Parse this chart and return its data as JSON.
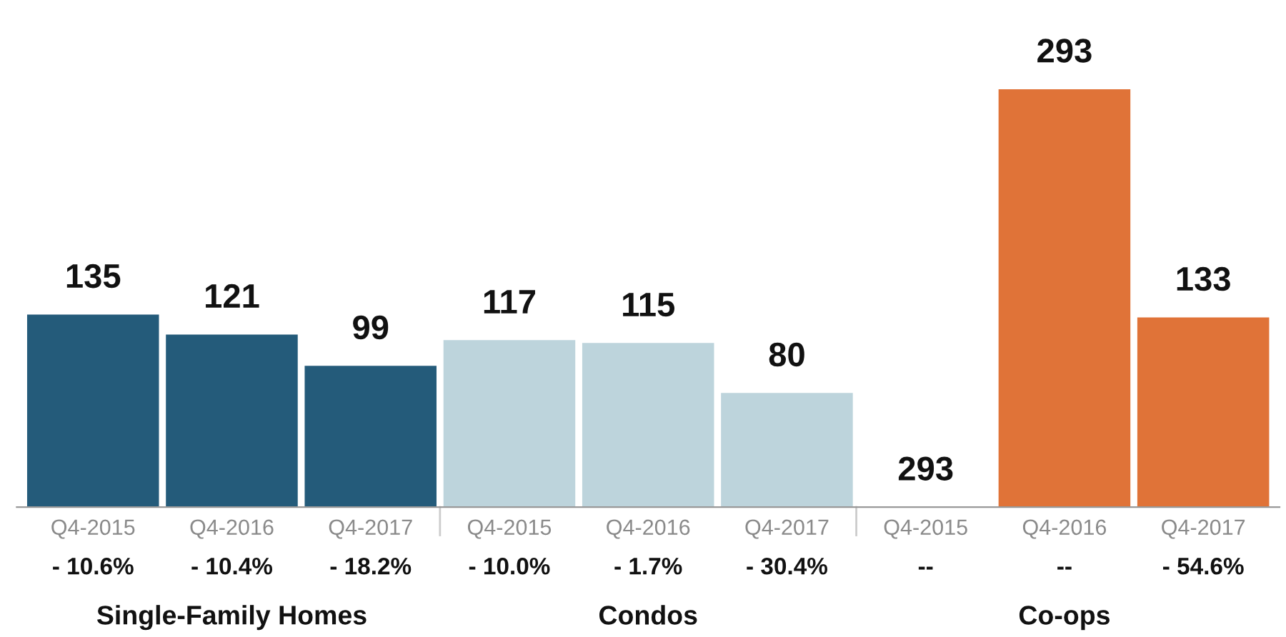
{
  "chart_data": {
    "type": "bar",
    "categories": [
      "Q4-2015",
      "Q4-2016",
      "Q4-2017",
      "Q4-2015",
      "Q4-2016",
      "Q4-2017",
      "Q4-2015",
      "Q4-2016",
      "Q4-2017"
    ],
    "values": [
      135,
      121,
      99,
      117,
      115,
      80,
      null,
      293,
      133
    ],
    "value_labels": [
      "135",
      "121",
      "99",
      "117",
      "115",
      "80",
      "293",
      "293",
      "133"
    ],
    "colors": [
      "#245b7a",
      "#245b7a",
      "#245b7a",
      "#bdd4dc",
      "#bdd4dc",
      "#bdd4dc",
      "#e07338",
      "#e07338",
      "#e07338"
    ],
    "annotations": [
      "- 10.6%",
      "- 10.4%",
      "- 18.2%",
      "- 10.0%",
      "- 1.7%",
      "- 30.4%",
      "--",
      "--",
      "- 54.6%",
      "Single-Family Homes",
      "Condos",
      "Co-ops"
    ],
    "grid": false,
    "legend": false
  }
}
